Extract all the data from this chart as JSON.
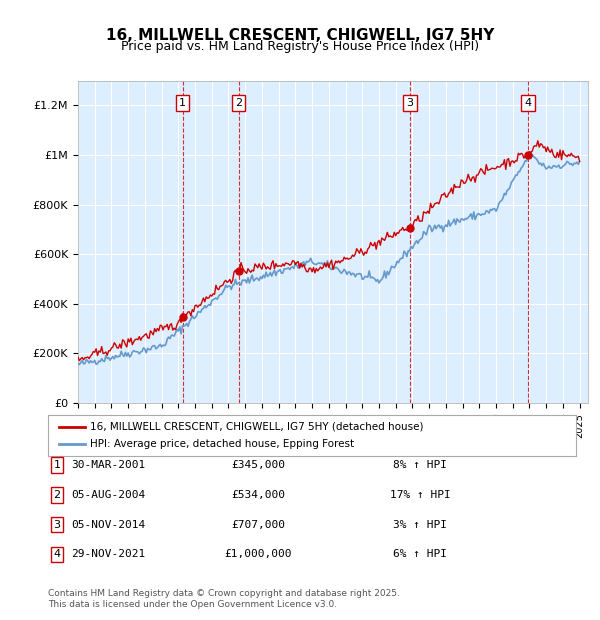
{
  "title": "16, MILLWELL CRESCENT, CHIGWELL, IG7 5HY",
  "subtitle": "Price paid vs. HM Land Registry's House Price Index (HPI)",
  "ylabel_ticks": [
    "£0",
    "£200K",
    "£400K",
    "£600K",
    "£800K",
    "£1M",
    "£1.2M"
  ],
  "ytick_values": [
    0,
    200000,
    400000,
    600000,
    800000,
    1000000,
    1200000
  ],
  "ylim": [
    0,
    1300000
  ],
  "xlim_start": 1995.0,
  "xlim_end": 2025.5,
  "background_color": "#ffffff",
  "plot_bg_color": "#ddeeff",
  "grid_color": "#ffffff",
  "red_line_color": "#cc0000",
  "blue_line_color": "#6699cc",
  "sale_marker_color": "#cc0000",
  "vline_color": "#cc0000",
  "vline_style": "--",
  "annotation_box_color": "#ffffff",
  "annotation_box_edge": "#cc0000",
  "legend_line1": "16, MILLWELL CRESCENT, CHIGWELL, IG7 5HY (detached house)",
  "legend_line2": "HPI: Average price, detached house, Epping Forest",
  "sales": [
    {
      "num": 1,
      "date": "30-MAR-2001",
      "price": "£345,000",
      "hpi": "8% ↑ HPI",
      "year": 2001.25
    },
    {
      "num": 2,
      "date": "05-AUG-2004",
      "price": "£534,000",
      "hpi": "17% ↑ HPI",
      "year": 2004.6
    },
    {
      "num": 3,
      "date": "05-NOV-2014",
      "price": "£707,000",
      "hpi": "3% ↑ HPI",
      "year": 2014.85
    },
    {
      "num": 4,
      "date": "29-NOV-2021",
      "price": "£1,000,000",
      "hpi": "6% ↑ HPI",
      "year": 2021.92
    }
  ],
  "sale_prices": [
    345000,
    534000,
    707000,
    1000000
  ],
  "footer": "Contains HM Land Registry data © Crown copyright and database right 2025.\nThis data is licensed under the Open Government Licence v3.0."
}
